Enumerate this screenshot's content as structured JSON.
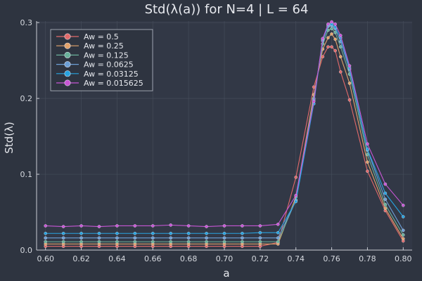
{
  "chart_data": {
    "type": "line",
    "title": "Std(λ(a)) for N=4 | L = 64",
    "xlabel": "a",
    "ylabel": "Std(λ)",
    "xlim": [
      0.595,
      0.805
    ],
    "ylim": [
      0.0,
      0.302
    ],
    "xticks": [
      0.6,
      0.62,
      0.64,
      0.66,
      0.68,
      0.7,
      0.72,
      0.74,
      0.76,
      0.78,
      0.8
    ],
    "xtick_labels": [
      "0.60",
      "0.62",
      "0.64",
      "0.66",
      "0.68",
      "0.70",
      "0.72",
      "0.74",
      "0.76",
      "0.78",
      "0.80"
    ],
    "yticks": [
      0.0,
      0.1,
      0.2,
      0.3
    ],
    "ytick_labels": [
      "0.0",
      "0.1",
      "0.2",
      "0.3"
    ],
    "grid": true,
    "legend_position": "top-left",
    "x": [
      0.6,
      0.61,
      0.62,
      0.63,
      0.64,
      0.65,
      0.66,
      0.67,
      0.68,
      0.69,
      0.7,
      0.71,
      0.72,
      0.73,
      0.74,
      0.75,
      0.755,
      0.758,
      0.76,
      0.762,
      0.765,
      0.77,
      0.78,
      0.79,
      0.8
    ],
    "series": [
      {
        "name": "Aw = 0.5",
        "color": "#e26a6a",
        "values": [
          0.005,
          0.005,
          0.005,
          0.005,
          0.005,
          0.005,
          0.005,
          0.005,
          0.005,
          0.005,
          0.005,
          0.005,
          0.005,
          0.01,
          0.096,
          0.215,
          0.255,
          0.268,
          0.268,
          0.263,
          0.235,
          0.198,
          0.104,
          0.052,
          0.012
        ]
      },
      {
        "name": "Aw = 0.25",
        "color": "#e3a36b",
        "values": [
          0.008,
          0.008,
          0.008,
          0.008,
          0.008,
          0.008,
          0.008,
          0.008,
          0.008,
          0.008,
          0.008,
          0.008,
          0.008,
          0.008,
          0.07,
          0.205,
          0.265,
          0.28,
          0.285,
          0.278,
          0.255,
          0.22,
          0.116,
          0.055,
          0.015
        ]
      },
      {
        "name": "Aw = 0.125",
        "color": "#6ab29b",
        "values": [
          0.011,
          0.011,
          0.011,
          0.011,
          0.011,
          0.011,
          0.011,
          0.011,
          0.011,
          0.011,
          0.011,
          0.011,
          0.011,
          0.011,
          0.066,
          0.2,
          0.272,
          0.29,
          0.292,
          0.287,
          0.268,
          0.232,
          0.126,
          0.06,
          0.02
        ]
      },
      {
        "name": "Aw = 0.0625",
        "color": "#6c9fd6",
        "values": [
          0.016,
          0.016,
          0.016,
          0.016,
          0.016,
          0.016,
          0.016,
          0.016,
          0.016,
          0.016,
          0.016,
          0.016,
          0.016,
          0.016,
          0.065,
          0.198,
          0.276,
          0.295,
          0.296,
          0.292,
          0.275,
          0.238,
          0.132,
          0.067,
          0.026
        ]
      },
      {
        "name": "Aw = 0.03125",
        "color": "#27a3e0",
        "values": [
          0.022,
          0.022,
          0.022,
          0.022,
          0.022,
          0.022,
          0.022,
          0.022,
          0.022,
          0.022,
          0.022,
          0.022,
          0.023,
          0.023,
          0.064,
          0.193,
          0.278,
          0.297,
          0.298,
          0.294,
          0.28,
          0.24,
          0.133,
          0.075,
          0.044
        ]
      },
      {
        "name": "Aw = 0.015625",
        "color": "#c856d6",
        "values": [
          0.032,
          0.031,
          0.032,
          0.031,
          0.032,
          0.032,
          0.032,
          0.033,
          0.032,
          0.031,
          0.032,
          0.032,
          0.032,
          0.034,
          0.072,
          0.196,
          0.279,
          0.298,
          0.301,
          0.298,
          0.283,
          0.243,
          0.14,
          0.087,
          0.059
        ]
      }
    ]
  }
}
